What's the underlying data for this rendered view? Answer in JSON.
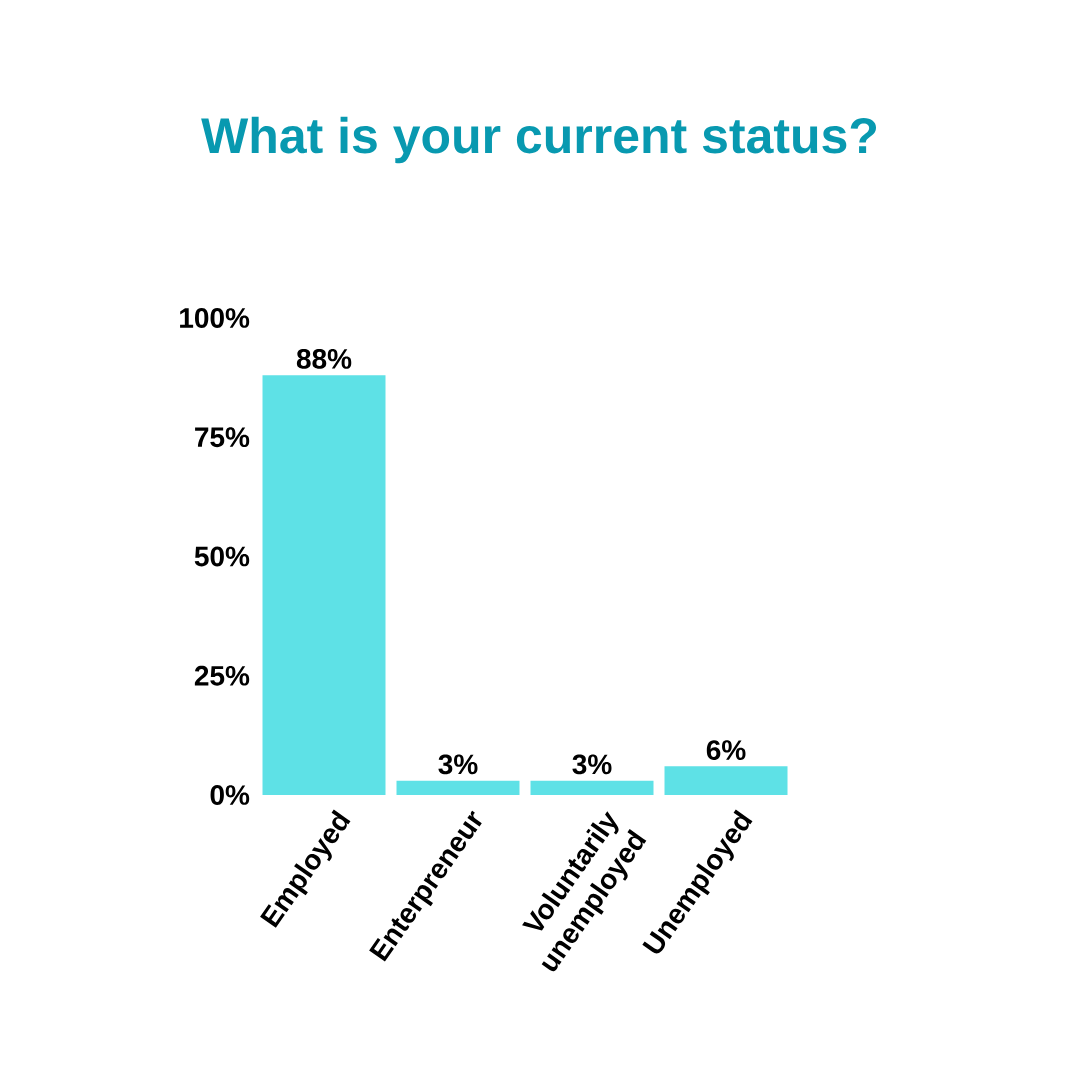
{
  "chart_data": {
    "type": "bar",
    "title": "What is your current status?",
    "categories": [
      "Employed",
      "Enterpreneur",
      "Voluntarily unemployed",
      "Unemployed"
    ],
    "values": [
      88,
      3,
      3,
      6
    ],
    "value_labels": [
      "88%",
      "3%",
      "3%",
      "6%"
    ],
    "color": "#5ee1e6",
    "ylim": [
      0,
      100
    ],
    "yticks": [
      {
        "value": 0,
        "label": "0%"
      },
      {
        "value": 25,
        "label": "25%"
      },
      {
        "value": 50,
        "label": "50%"
      },
      {
        "value": 75,
        "label": "75%"
      },
      {
        "value": 100,
        "label": "100%"
      }
    ]
  }
}
